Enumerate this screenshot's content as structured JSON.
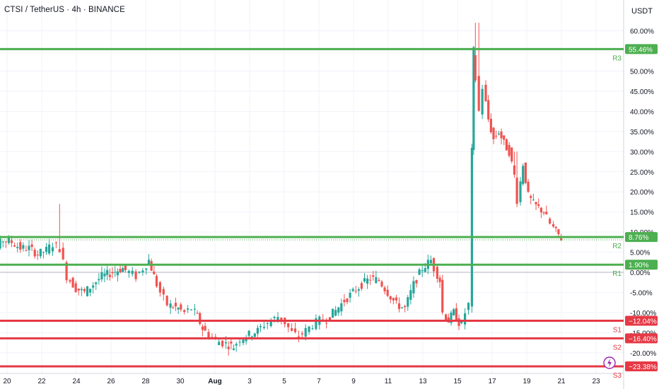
{
  "header": {
    "title": "CTSI / TetherUS · 4h · BINANCE",
    "currency": "USDT"
  },
  "colors": {
    "up": "#26a69a",
    "down": "#ef5350",
    "resistance": "#4caf50",
    "support": "#e53945",
    "grid": "#f0f3fa",
    "axis_text": "#131722"
  },
  "chart_data": {
    "type": "candlestick",
    "title": "CTSI / TetherUS · 4h · BINANCE",
    "y_axis": {
      "unit": "USDT",
      "scale": "percent",
      "range": [
        -24,
        63
      ],
      "ticks": [
        "60.00%",
        "55.00%",
        "50.00%",
        "45.00%",
        "40.00%",
        "35.00%",
        "30.00%",
        "25.00%",
        "20.00%",
        "15.00%",
        "10.00%",
        "5.00%",
        "0.00%",
        "-5.00%",
        "-10.00%",
        "-15.00%",
        "-20.00%"
      ]
    },
    "x_axis": {
      "ticks": [
        "20",
        "22",
        "24",
        "26",
        "28",
        "30",
        "Aug",
        "3",
        "5",
        "7",
        "9",
        "11",
        "13",
        "15",
        "17",
        "19",
        "21",
        "23"
      ]
    },
    "levels": [
      {
        "name": "R3",
        "value": 55.46,
        "label": "55.46%",
        "kind": "resistance"
      },
      {
        "name": "R2",
        "value": 8.76,
        "label": "8.76%",
        "kind": "resistance"
      },
      {
        "name": "R1",
        "value": 1.9,
        "label": "1.90%",
        "kind": "resistance"
      },
      {
        "name": "S1",
        "value": -12.04,
        "label": "−12.04%",
        "kind": "support"
      },
      {
        "name": "S2",
        "value": -16.4,
        "label": "−16.40%",
        "kind": "support"
      },
      {
        "name": "S3",
        "value": -23.38,
        "label": "−23.38%",
        "kind": "support"
      }
    ],
    "price_path_percent": [
      [
        18.7,
        2
      ],
      [
        19.3,
        3
      ],
      [
        19.8,
        6
      ],
      [
        20.3,
        8
      ],
      [
        20.8,
        7.5
      ],
      [
        21.3,
        6
      ],
      [
        21.8,
        6
      ],
      [
        22.3,
        4.5
      ],
      [
        22.8,
        5.5
      ],
      [
        23.2,
        7
      ],
      [
        23.6,
        6
      ],
      [
        24.0,
        -1
      ],
      [
        24.5,
        -4
      ],
      [
        25.0,
        -5
      ],
      [
        25.5,
        -3
      ],
      [
        26.0,
        -1
      ],
      [
        26.6,
        0
      ],
      [
        27.2,
        1
      ],
      [
        27.6,
        0
      ],
      [
        28.0,
        -1
      ],
      [
        28.4,
        1
      ],
      [
        28.7,
        3
      ],
      [
        29.0,
        -1
      ],
      [
        29.4,
        -5
      ],
      [
        29.8,
        -8
      ],
      [
        30.4,
        -9
      ],
      [
        30.8,
        -10
      ],
      [
        31.2,
        -9
      ],
      [
        31.5,
        -11
      ],
      [
        31.8,
        -14
      ],
      [
        32.2,
        -15.5
      ],
      [
        32.6,
        -17
      ],
      [
        33.0,
        -17.5
      ],
      [
        33.3,
        -18
      ],
      [
        33.6,
        -18.5
      ],
      [
        34.0,
        -16.5
      ],
      [
        34.5,
        -15.5
      ],
      [
        35.0,
        -14.5
      ],
      [
        35.4,
        -13
      ],
      [
        35.8,
        -12
      ],
      [
        36.2,
        -11
      ],
      [
        36.6,
        -12.5
      ],
      [
        37.0,
        -15
      ],
      [
        37.4,
        -16
      ],
      [
        37.8,
        -14.5
      ],
      [
        38.2,
        -13
      ],
      [
        38.6,
        -12
      ],
      [
        39.0,
        -11.5
      ],
      [
        39.5,
        -9.5
      ],
      [
        40.0,
        -7
      ],
      [
        40.5,
        -5
      ],
      [
        41.0,
        -3
      ],
      [
        41.5,
        -1.5
      ],
      [
        42.0,
        -2
      ],
      [
        42.5,
        -5
      ],
      [
        43.0,
        -8
      ],
      [
        43.5,
        -9
      ],
      [
        44.0,
        -3
      ],
      [
        44.5,
        1
      ],
      [
        45.0,
        3
      ],
      [
        45.2,
        1
      ],
      [
        45.5,
        -2
      ],
      [
        45.7,
        -10
      ],
      [
        46.0,
        -12
      ],
      [
        46.3,
        -10
      ],
      [
        46.6,
        -12.5
      ],
      [
        46.8,
        -13
      ],
      [
        47.0,
        -10
      ],
      [
        47.2,
        -8
      ],
      [
        47.3,
        30
      ],
      [
        47.4,
        55
      ],
      [
        47.6,
        48
      ],
      [
        47.8,
        40
      ],
      [
        48.0,
        46
      ],
      [
        48.3,
        38
      ],
      [
        48.6,
        33
      ],
      [
        48.9,
        35
      ],
      [
        49.2,
        32
      ],
      [
        49.5,
        30
      ],
      [
        49.8,
        24
      ],
      [
        50.0,
        18
      ],
      [
        50.3,
        27
      ],
      [
        50.6,
        19
      ],
      [
        50.9,
        17
      ],
      [
        51.2,
        16
      ],
      [
        51.5,
        15
      ],
      [
        51.9,
        12
      ],
      [
        52.2,
        10
      ],
      [
        52.5,
        8.5
      ]
    ]
  }
}
